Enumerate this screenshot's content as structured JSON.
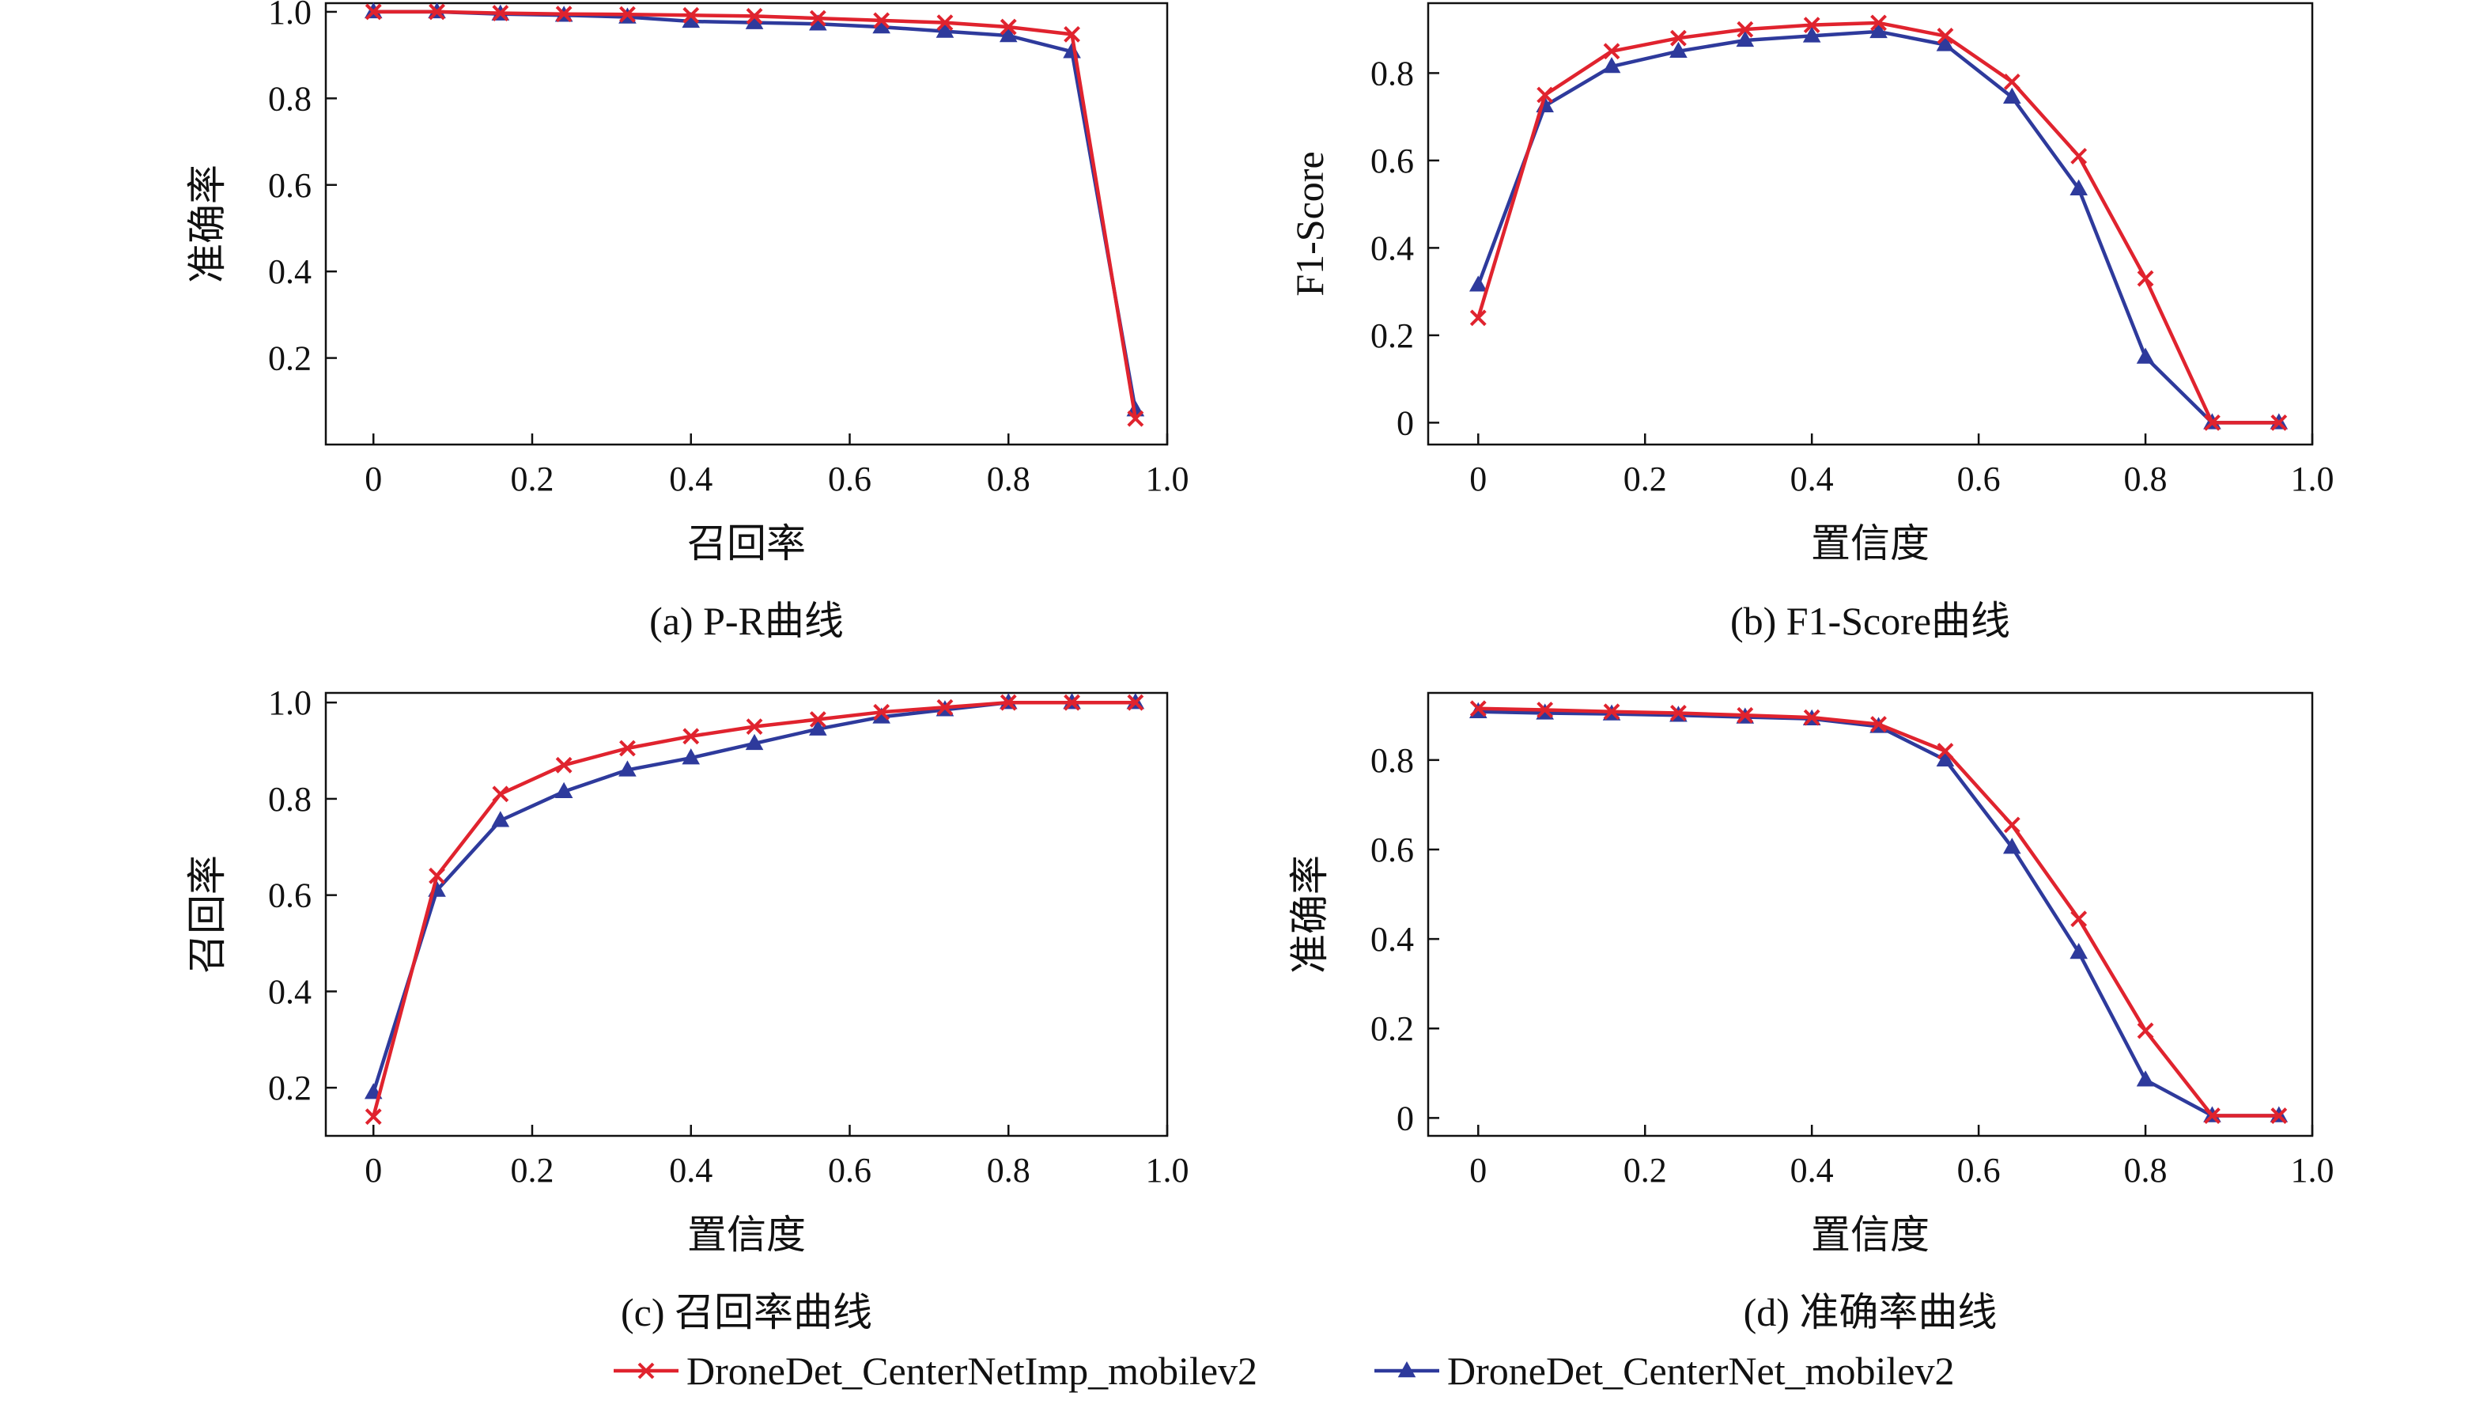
{
  "colors": {
    "series_a": "#E0232E",
    "series_b": "#2E3A9C",
    "axis": "#111111"
  },
  "legend": {
    "placement": "bottom",
    "entries": [
      {
        "label": "DroneDet_CenterNetImp_mobilev2",
        "marker": "x",
        "color": "#E0232E"
      },
      {
        "label": "DroneDet_CenterNet_mobilev2",
        "marker": "triangle",
        "color": "#2E3A9C"
      }
    ]
  },
  "chart_data": [
    {
      "type": "line",
      "caption": "(a) P-R曲线",
      "xlabel": "召回率",
      "ylabel": "准确率",
      "xlim": [
        -0.06,
        1.0
      ],
      "ylim": [
        0.0,
        1.02
      ],
      "xticks": [
        0,
        0.2,
        0.4,
        0.6,
        0.8,
        1.0
      ],
      "xtick_labels": [
        "0",
        "0.2",
        "0.4",
        "0.6",
        "0.8",
        "1.0"
      ],
      "yticks": [
        0.2,
        0.4,
        0.6,
        0.8,
        1.0
      ],
      "ytick_labels": [
        "0.2",
        "0.4",
        "0.6",
        "0.8",
        "1.0"
      ],
      "series": [
        {
          "name": "DroneDet_CenterNetImp_mobilev2",
          "marker": "x",
          "x": [
            0,
            0.08,
            0.16,
            0.24,
            0.32,
            0.4,
            0.48,
            0.56,
            0.64,
            0.72,
            0.8,
            0.88,
            0.96
          ],
          "y": [
            1.0,
            1.0,
            0.997,
            0.995,
            0.994,
            0.992,
            0.99,
            0.985,
            0.98,
            0.975,
            0.965,
            0.948,
            0.06
          ]
        },
        {
          "name": "DroneDet_CenterNet_mobilev2",
          "marker": "triangle",
          "x": [
            0,
            0.08,
            0.16,
            0.24,
            0.32,
            0.4,
            0.48,
            0.56,
            0.64,
            0.72,
            0.8,
            0.88,
            0.96
          ],
          "y": [
            1.0,
            1.0,
            0.995,
            0.992,
            0.988,
            0.978,
            0.975,
            0.972,
            0.965,
            0.955,
            0.945,
            0.908,
            0.08
          ]
        }
      ]
    },
    {
      "type": "line",
      "caption": "(b) F1-Score曲线",
      "xlabel": "置信度",
      "ylabel": "F1-Score",
      "xlim": [
        -0.06,
        1.0
      ],
      "ylim": [
        -0.05,
        0.96
      ],
      "xticks": [
        0,
        0.2,
        0.4,
        0.6,
        0.8,
        1.0
      ],
      "xtick_labels": [
        "0",
        "0.2",
        "0.4",
        "0.6",
        "0.8",
        "1.0"
      ],
      "yticks": [
        0,
        0.2,
        0.4,
        0.6,
        0.8
      ],
      "ytick_labels": [
        "0",
        "0.2",
        "0.4",
        "0.6",
        "0.8"
      ],
      "series": [
        {
          "name": "DroneDet_CenterNetImp_mobilev2",
          "marker": "x",
          "x": [
            0,
            0.08,
            0.16,
            0.24,
            0.32,
            0.4,
            0.48,
            0.56,
            0.64,
            0.72,
            0.8,
            0.88,
            0.96
          ],
          "y": [
            0.24,
            0.75,
            0.85,
            0.88,
            0.9,
            0.91,
            0.915,
            0.885,
            0.78,
            0.61,
            0.33,
            0.0,
            0.0
          ]
        },
        {
          "name": "DroneDet_CenterNet_mobilev2",
          "marker": "triangle",
          "x": [
            0,
            0.08,
            0.16,
            0.24,
            0.32,
            0.4,
            0.48,
            0.56,
            0.64,
            0.72,
            0.8,
            0.88,
            0.96
          ],
          "y": [
            0.315,
            0.725,
            0.815,
            0.85,
            0.875,
            0.885,
            0.895,
            0.865,
            0.745,
            0.535,
            0.15,
            0.0,
            0.0
          ]
        }
      ]
    },
    {
      "type": "line",
      "caption": "(c) 召回率曲线",
      "xlabel": "置信度",
      "ylabel": "召回率",
      "xlim": [
        -0.06,
        1.0
      ],
      "ylim": [
        0.1,
        1.02
      ],
      "xticks": [
        0,
        0.2,
        0.4,
        0.6,
        0.8,
        1.0
      ],
      "xtick_labels": [
        "0",
        "0.2",
        "0.4",
        "0.6",
        "0.8",
        "1.0"
      ],
      "yticks": [
        0.2,
        0.4,
        0.6,
        0.8,
        1.0
      ],
      "ytick_labels": [
        "0.2",
        "0.4",
        "0.6",
        "0.8",
        "1.0"
      ],
      "series": [
        {
          "name": "DroneDet_CenterNetImp_mobilev2",
          "marker": "x",
          "x": [
            0,
            0.08,
            0.16,
            0.24,
            0.32,
            0.4,
            0.48,
            0.56,
            0.64,
            0.72,
            0.8,
            0.88,
            0.96
          ],
          "y": [
            0.14,
            0.64,
            0.81,
            0.87,
            0.905,
            0.93,
            0.95,
            0.965,
            0.98,
            0.99,
            1.0,
            1.0,
            1.0
          ]
        },
        {
          "name": "DroneDet_CenterNet_mobilev2",
          "marker": "triangle",
          "x": [
            0,
            0.08,
            0.16,
            0.24,
            0.32,
            0.4,
            0.48,
            0.56,
            0.64,
            0.72,
            0.8,
            0.88,
            0.96
          ],
          "y": [
            0.19,
            0.61,
            0.755,
            0.815,
            0.86,
            0.885,
            0.915,
            0.945,
            0.97,
            0.985,
            1.0,
            1.0,
            1.0
          ]
        }
      ]
    },
    {
      "type": "line",
      "caption": "(d) 准确率曲线",
      "xlabel": "置信度",
      "ylabel": "准确率",
      "xlim": [
        -0.06,
        1.0
      ],
      "ylim": [
        -0.04,
        0.95
      ],
      "xticks": [
        0,
        0.2,
        0.4,
        0.6,
        0.8,
        1.0
      ],
      "xtick_labels": [
        "0",
        "0.2",
        "0.4",
        "0.6",
        "0.8",
        "1.0"
      ],
      "yticks": [
        0,
        0.2,
        0.4,
        0.6,
        0.8
      ],
      "ytick_labels": [
        "0",
        "0.2",
        "0.4",
        "0.6",
        "0.8"
      ],
      "series": [
        {
          "name": "DroneDet_CenterNetImp_mobilev2",
          "marker": "x",
          "x": [
            0,
            0.08,
            0.16,
            0.24,
            0.32,
            0.4,
            0.48,
            0.56,
            0.64,
            0.72,
            0.8,
            0.88,
            0.96
          ],
          "y": [
            0.915,
            0.912,
            0.908,
            0.905,
            0.9,
            0.895,
            0.88,
            0.82,
            0.655,
            0.445,
            0.195,
            0.005,
            0.005
          ]
        },
        {
          "name": "DroneDet_CenterNet_mobilev2",
          "marker": "triangle",
          "x": [
            0,
            0.08,
            0.16,
            0.24,
            0.32,
            0.4,
            0.48,
            0.56,
            0.64,
            0.72,
            0.8,
            0.88,
            0.96
          ],
          "y": [
            0.908,
            0.905,
            0.903,
            0.9,
            0.896,
            0.892,
            0.875,
            0.8,
            0.605,
            0.37,
            0.085,
            0.005,
            0.005
          ]
        }
      ]
    }
  ]
}
